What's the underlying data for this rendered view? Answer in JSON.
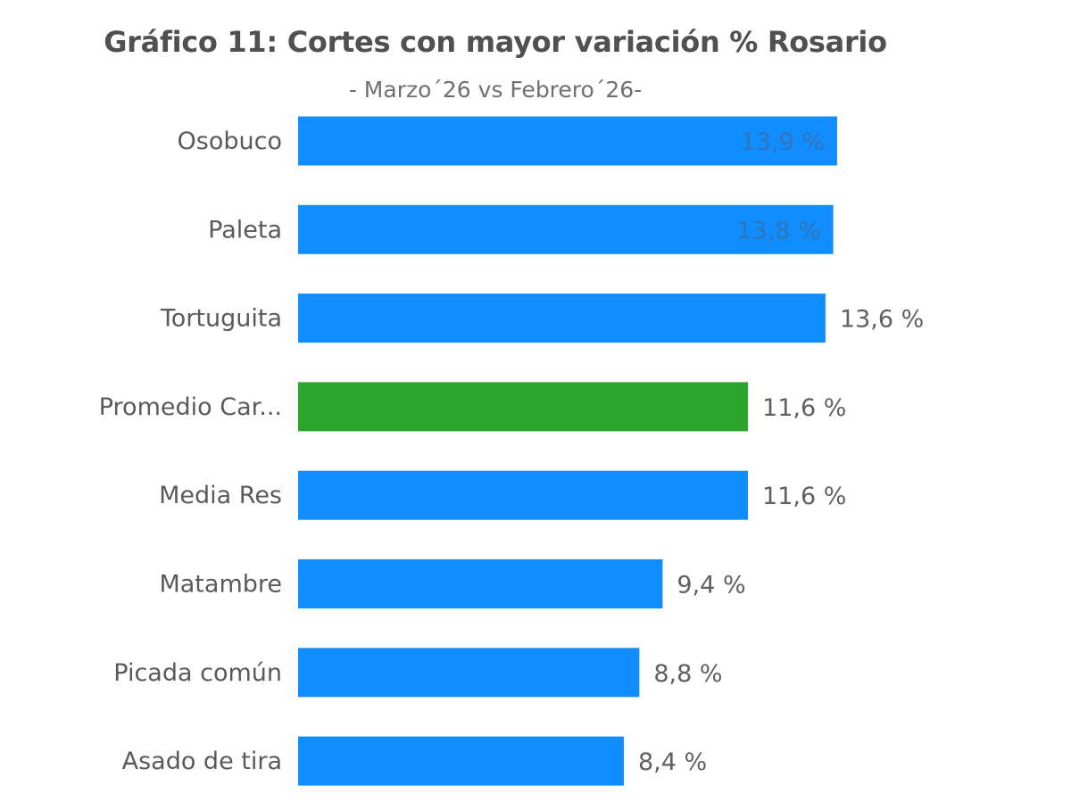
{
  "chart_data": {
    "type": "bar",
    "orientation": "horizontal",
    "title": "Gráfico 11: Cortes con mayor variación % Rosario",
    "subtitle": "- Marzo´26 vs Febrero´26-",
    "categories": [
      "Osobuco",
      "Paleta",
      "Tortuguita",
      "Promedio Car...",
      "Media Res",
      "Matambre",
      "Picada común",
      "Asado de tira"
    ],
    "values": [
      13.9,
      13.8,
      13.6,
      11.6,
      11.6,
      9.4,
      8.8,
      8.4
    ],
    "labels": [
      "13,9 %",
      "13,8 %",
      "13,6 %",
      "11,6 %",
      "11,6 %",
      "9,4 %",
      "8,8 %",
      "8,4 %"
    ],
    "highlight_index": 3,
    "xlabel": "",
    "ylabel": "",
    "xlim": [
      0,
      14
    ],
    "grid": false,
    "colors": {
      "bar": "#118DFF",
      "highlight": "#2CA52C"
    }
  }
}
